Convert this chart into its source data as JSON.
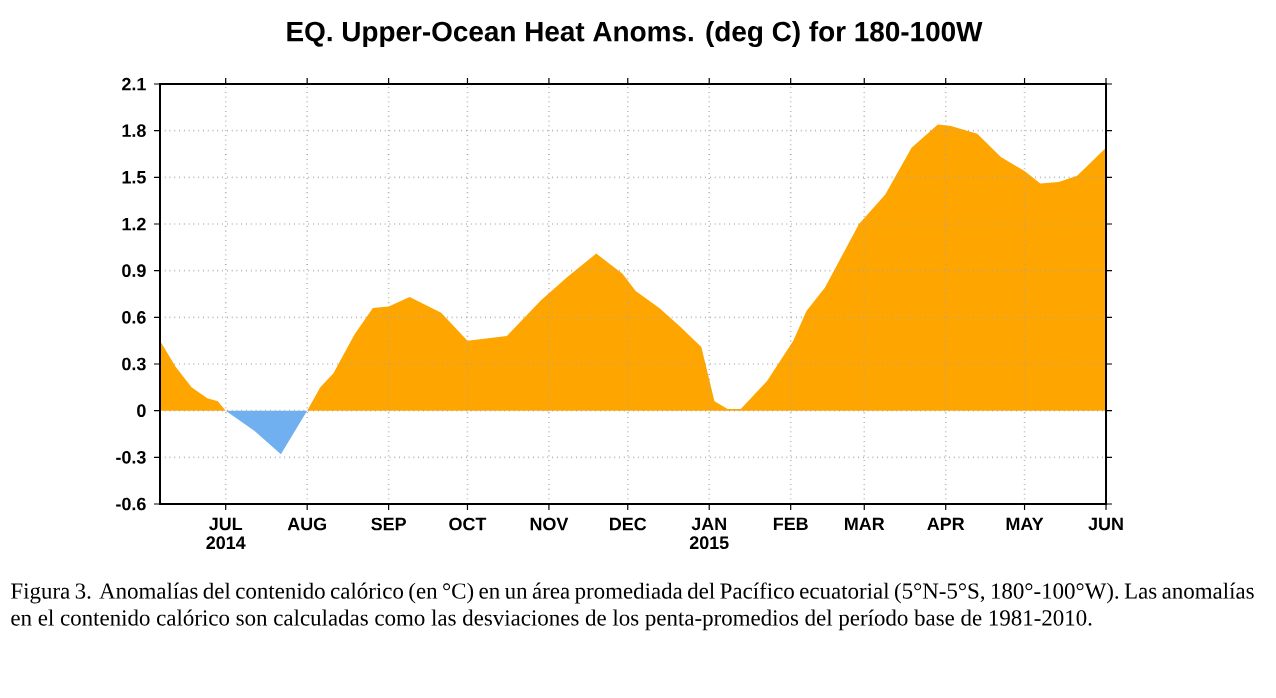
{
  "chart_data": {
    "type": "area",
    "title": "EQ. Upper-Ocean Heat Anoms. (deg C) for 180-100W",
    "annotations": [
      "Figura 3. Anomalías del contenido calórico (en °C) en un área promediada del Pacífico ecuatorial (5°N-5°S, 180°-100°W). Las anomalías en el contenido calórico son calculadas como las desviaciones de los penta-promedios del período base de 1981-2010."
    ],
    "series": [
      {
        "color": "#ffa500",
        "x": [
          "2014-06-06",
          "2014-06-12",
          "2014-06-18",
          "2014-06-24",
          "2014-06-28",
          "2014-07-01",
          "2014-08-01",
          "2014-08-06",
          "2014-08-11",
          "2014-08-19",
          "2014-08-26",
          "2014-09-01",
          "2014-09-09",
          "2014-09-21",
          "2014-10-01",
          "2014-10-16",
          "2014-10-29",
          "2014-11-08",
          "2014-11-19",
          "2014-11-29",
          "2014-12-04",
          "2014-12-13",
          "2014-12-21",
          "2014-12-29",
          "2015-01-03",
          "2015-01-08",
          "2015-01-13",
          "2015-01-23",
          "2015-02-02",
          "2015-02-07",
          "2015-02-14",
          "2015-02-27",
          "2015-03-09",
          "2015-03-19",
          "2015-03-29",
          "2015-04-03",
          "2015-04-13",
          "2015-04-22",
          "2015-05-01",
          "2015-05-07",
          "2015-05-14",
          "2015-05-21",
          "2015-06-01"
        ],
        "values": [
          0.45,
          0.28,
          0.15,
          0.08,
          0.06,
          0,
          0,
          0.15,
          0.24,
          0.49,
          0.66,
          0.67,
          0.73,
          0.63,
          0.45,
          0.48,
          0.71,
          0.86,
          1.01,
          0.88,
          0.77,
          0.66,
          0.54,
          0.41,
          0.06,
          0.01,
          0.01,
          0.19,
          0.45,
          0.64,
          0.79,
          1.2,
          1.39,
          1.69,
          1.84,
          1.83,
          1.78,
          1.63,
          1.54,
          1.46,
          1.47,
          1.51,
          1.69
        ]
      },
      {
        "color": "#70b0f0",
        "x": [
          "2014-07-01",
          "2014-07-12",
          "2014-07-22",
          "2014-08-01"
        ],
        "values": [
          0,
          -0.13,
          -0.28,
          0
        ]
      }
    ],
    "xlim": [
      "2014-06-06",
      "2015-06-01"
    ],
    "xticks": [
      {
        "value": "2014-07-01",
        "label": "JUL 2014"
      },
      {
        "value": "2014-08-01",
        "label": "AUG"
      },
      {
        "value": "2014-09-01",
        "label": "SEP"
      },
      {
        "value": "2014-10-01",
        "label": "OCT"
      },
      {
        "value": "2014-11-01",
        "label": "NOV"
      },
      {
        "value": "2014-12-01",
        "label": "DEC"
      },
      {
        "value": "2015-01-01",
        "label": "JAN 2015"
      },
      {
        "value": "2015-02-01",
        "label": "FEB"
      },
      {
        "value": "2015-03-01",
        "label": "MAR"
      },
      {
        "value": "2015-04-01",
        "label": "APR"
      },
      {
        "value": "2015-05-01",
        "label": "MAY"
      },
      {
        "value": "2015-06-01",
        "label": "JUN"
      }
    ],
    "ylim": [
      -0.6,
      2.1
    ],
    "yticks": [
      -0.6,
      -0.3,
      0,
      0.3,
      0.6,
      0.9,
      1.2,
      1.5,
      1.8,
      2.1
    ],
    "grid": true
  }
}
